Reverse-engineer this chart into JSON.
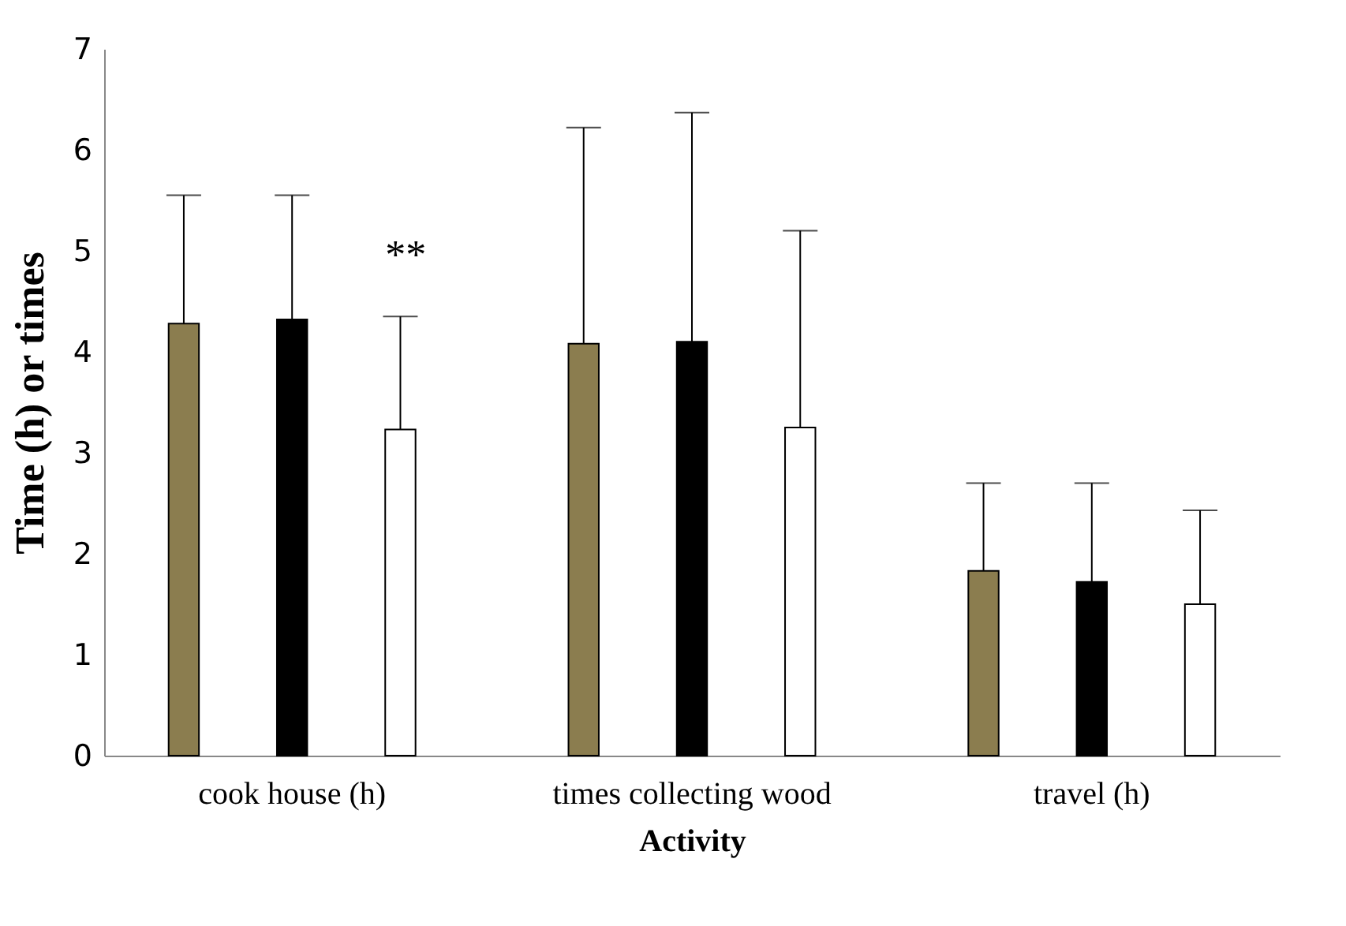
{
  "chart_data": {
    "type": "bar",
    "xlabel": "Activity",
    "ylabel": "Time (h) or times",
    "categories": [
      "cook house (h)",
      "times collecting wood",
      "travel (h)"
    ],
    "series": [
      {
        "color": "#8b7d4f",
        "values": [
          4.28,
          4.08,
          1.83
        ],
        "errors": [
          [
            4.28,
            5.55
          ],
          [
            4.08,
            6.22
          ],
          [
            1.83,
            2.7
          ]
        ]
      },
      {
        "color": "#000000",
        "values": [
          4.32,
          4.1,
          1.72
        ],
        "errors": [
          [
            4.32,
            5.55
          ],
          [
            4.1,
            6.37
          ],
          [
            1.72,
            2.7
          ]
        ]
      },
      {
        "color": "#ffffff",
        "values": [
          3.23,
          3.25,
          1.5
        ],
        "errors": [
          [
            3.23,
            4.35
          ],
          [
            3.25,
            5.2
          ],
          [
            1.5,
            2.43
          ]
        ]
      }
    ],
    "annotations": [
      {
        "text": "**",
        "x": "cook house (h)",
        "y": 4.95
      }
    ],
    "ylim": [
      0,
      7
    ],
    "yticks": [
      0,
      1,
      2,
      3,
      4,
      5,
      6,
      7
    ],
    "grid": false
  }
}
